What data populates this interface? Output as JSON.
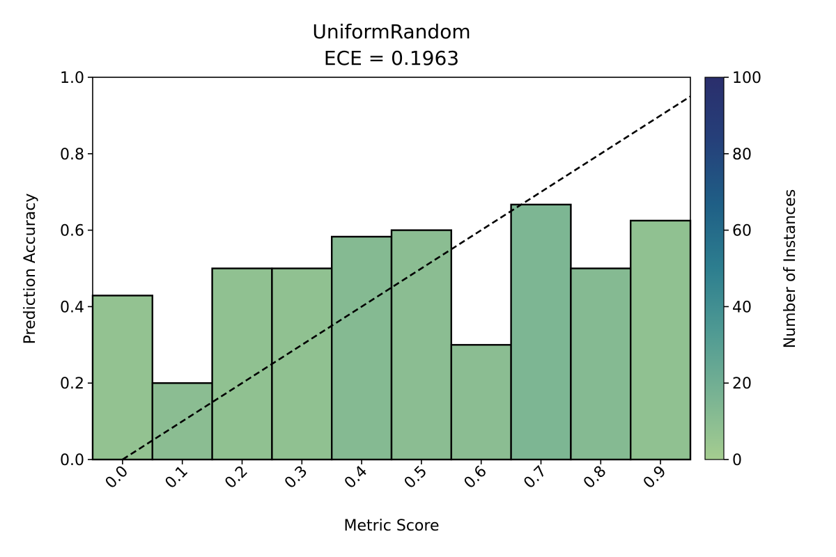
{
  "chart_data": {
    "type": "bar",
    "title": "UniformRandom",
    "subtitle": "ECE = 0.1963",
    "xlabel": "Metric Score",
    "ylabel": "Prediction Accuracy",
    "categories": [
      "0.0",
      "0.1",
      "0.2",
      "0.3",
      "0.4",
      "0.5",
      "0.6",
      "0.7",
      "0.8",
      "0.9"
    ],
    "x": [
      0.0,
      0.1,
      0.2,
      0.3,
      0.4,
      0.5,
      0.6,
      0.7,
      0.8,
      0.9
    ],
    "values": [
      0.429,
      0.2,
      0.5,
      0.5,
      0.583,
      0.6,
      0.3,
      0.667,
      0.5,
      0.625
    ],
    "counts": [
      7,
      10,
      8,
      8,
      12,
      10,
      10,
      15,
      12,
      8
    ],
    "xlim": [
      -0.05,
      0.95
    ],
    "ylim": [
      0,
      1.0
    ],
    "yticks": [
      "0.0",
      "0.2",
      "0.4",
      "0.6",
      "0.8",
      "1.0"
    ],
    "diagonal": {
      "from": [
        0,
        0
      ],
      "to": [
        1,
        1
      ],
      "style": "dashed",
      "color": "#000000"
    },
    "colorbar": {
      "label": "Number of Instances",
      "min": 0,
      "max": 100,
      "ticks": [
        "0",
        "20",
        "40",
        "60",
        "80",
        "100"
      ],
      "colormap": [
        "#a5cd90",
        "#79b393",
        "#4f9a93",
        "#2d7e8f",
        "#1f5f86",
        "#25407a",
        "#2a2e6c"
      ]
    },
    "grid": false,
    "bar_edge_color": "#000000"
  }
}
